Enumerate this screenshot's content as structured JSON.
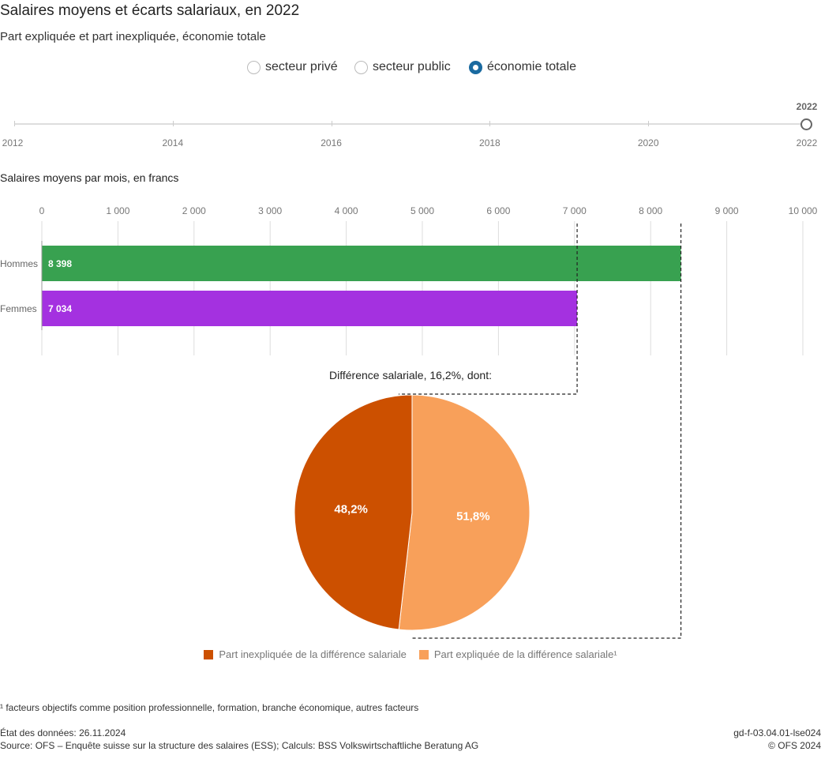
{
  "title": "Salaires moyens et écarts salariaux, en 2022",
  "subtitle": "Part expliquée et part inexpliquée, économie totale",
  "radio_options": [
    {
      "label": "secteur privé",
      "selected": false
    },
    {
      "label": "secteur public",
      "selected": false
    },
    {
      "label": "économie totale",
      "selected": true
    }
  ],
  "timeline": {
    "ticks": [
      "2012",
      "2014",
      "2016",
      "2018",
      "2020",
      "2022"
    ],
    "selected": "2022"
  },
  "colors": {
    "hommes": "#38a150",
    "femmes": "#a431e0",
    "inexpliquee": "#cc5000",
    "expliquee": "#f8a05a",
    "accent": "#1a6aa0"
  },
  "chart_data": [
    {
      "type": "bar",
      "title": "Salaires moyens par mois, en francs",
      "categories": [
        "Hommes",
        "Femmes"
      ],
      "values": [
        8398,
        7034
      ],
      "value_labels": [
        "8 398",
        "7 034"
      ],
      "xlim": [
        0,
        10000
      ],
      "ticks": [
        0,
        1000,
        2000,
        3000,
        4000,
        5000,
        6000,
        7000,
        8000,
        9000,
        10000
      ],
      "tick_labels": [
        "0",
        "1 000",
        "2 000",
        "3 000",
        "4 000",
        "5 000",
        "6 000",
        "7 000",
        "8 000",
        "9 000",
        "10 000"
      ],
      "grid": true
    },
    {
      "type": "pie",
      "title": "Différence salariale, 16,2%, dont:",
      "slices": [
        {
          "name": "Part expliquée de la différence salariale¹",
          "value": 51.8,
          "label": "51,8%"
        },
        {
          "name": "Part inexpliquée de la différence salariale",
          "value": 48.2,
          "label": "48,2%"
        }
      ],
      "legend": "bottom"
    }
  ],
  "footnote": "¹ facteurs objectifs comme position professionnelle, formation, branche économique, autres facteurs",
  "data_state": "État des données: 26.11.2024",
  "source": "Source: OFS – Enquête suisse sur la structure des salaires (ESS); Calculs: BSS Volkswirtschaftliche Beratung AG",
  "code": "gd-f-03.04.01-lse024",
  "copyright": "© OFS 2024"
}
